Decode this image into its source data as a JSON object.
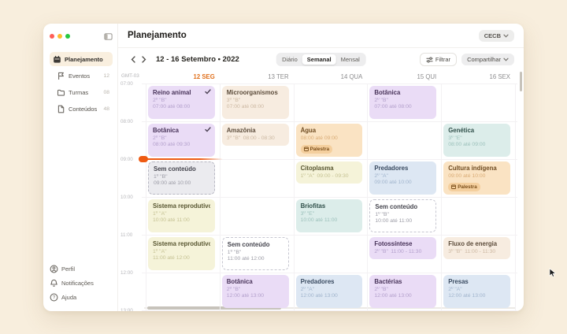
{
  "window": {
    "traffic_lights": [
      "#ff5f57",
      "#febc2e",
      "#28c840"
    ]
  },
  "sidebar": {
    "items": [
      {
        "label": "Planejamento",
        "icon": "calendar-icon",
        "count": "",
        "active": true
      },
      {
        "label": "Eventos",
        "icon": "flag-icon",
        "count": "12",
        "active": false
      },
      {
        "label": "Turmas",
        "icon": "folder-icon",
        "count": "08",
        "active": false
      },
      {
        "label": "Conteúdos",
        "icon": "file-icon",
        "count": "48",
        "active": false
      }
    ],
    "footer_items": [
      {
        "label": "Perfil",
        "icon": "user-icon"
      },
      {
        "label": "Notificações",
        "icon": "bell-icon"
      },
      {
        "label": "Ajuda",
        "icon": "help-icon"
      }
    ]
  },
  "header": {
    "title": "Planejamento",
    "org_selector": "CECB"
  },
  "toolbar": {
    "date_range": "12 - 16 Setembro • 2022",
    "view_options": [
      "Diário",
      "Semanal",
      "Mensal"
    ],
    "selected_view": "Semanal",
    "filter_label": "Filtrar",
    "share_label": "Compartilhar"
  },
  "calendar": {
    "timezone": "GMT-03",
    "accent": "#e8701c",
    "days": [
      {
        "label": "12 SEG",
        "active": true
      },
      {
        "label": "13 TER",
        "active": false
      },
      {
        "label": "14 QUA",
        "active": false
      },
      {
        "label": "15 QUI",
        "active": false
      },
      {
        "label": "16 SEX",
        "active": false
      }
    ],
    "hours": [
      "07:00",
      "08:00",
      "09:00",
      "10:00",
      "11:00",
      "12:00",
      "13:00"
    ],
    "now_indicator": {
      "day": 0,
      "time": "09:00",
      "color": "#ee5a12"
    },
    "palette": {
      "purple": {
        "bg": "#eadcf6",
        "title": "#473258",
        "sub": "#b29fcb"
      },
      "beige": {
        "bg": "#f7ece0",
        "title": "#5c4c3b",
        "sub": "#ccb8a2"
      },
      "orange": {
        "bg": "#fae3c3",
        "title": "#6e4b21",
        "sub": "#d9ac77",
        "badge_bg": "#f4cf9e",
        "badge_text": "#7c501c"
      },
      "teal": {
        "bg": "#dcedea",
        "title": "#2f4f49",
        "sub": "#9cc1bb"
      },
      "yellow": {
        "bg": "#f5f3d9",
        "title": "#585631",
        "sub": "#c5c293"
      },
      "blue": {
        "bg": "#dde7f3",
        "title": "#394a60",
        "sub": "#a0b4cc"
      },
      "gray": {
        "bg": "#ebebef",
        "title": "#45454e",
        "sub": "#9b9ba5",
        "border": "#b7b7c2",
        "dashed": true
      },
      "white": {
        "bg": "#ffffff",
        "title": "#45454e",
        "sub": "#9b9ba5",
        "border": "#c7c7d1",
        "dashed": true
      }
    },
    "events": [
      {
        "day": 0,
        "title": "Reino animal",
        "klass": "2º \"B\"",
        "time": "07:00 até 08:00",
        "start": "07:00",
        "end": "08:00",
        "color": "purple",
        "checked": true
      },
      {
        "day": 0,
        "title": "Botânica",
        "klass": "2º \"B\"",
        "time": "08:00 até 09:30",
        "start": "08:00",
        "end": "09:30",
        "color": "purple",
        "checked": true
      },
      {
        "day": 0,
        "title": "Sem conteúdo",
        "klass": "1º \"B\"",
        "time": "09:00 até 10:00",
        "start": "09:00",
        "end": "10:00",
        "color": "gray"
      },
      {
        "day": 0,
        "title": "Sistema reprodutivo",
        "klass": "1º \"A\"",
        "time": "10:00 até 11:00",
        "start": "10:00",
        "end": "11:00",
        "color": "yellow"
      },
      {
        "day": 0,
        "title": "Sistema reprodutivo",
        "klass": "1º \"A\"",
        "time": "11:00 até 12:00",
        "start": "11:00",
        "end": "12:00",
        "color": "yellow"
      },
      {
        "day": 1,
        "title": "Microorganismos",
        "klass": "3º \"B\"",
        "time": "07:00 até 08:00",
        "start": "07:00",
        "end": "08:00",
        "color": "beige"
      },
      {
        "day": 1,
        "title": "Amazônia",
        "klass": "3º \"B\"",
        "time": "08:00 - 08:30",
        "start": "08:00",
        "end": "08:30",
        "color": "beige",
        "inline": true
      },
      {
        "day": 1,
        "title": "Sem conteúdo",
        "klass": "1º \"B\"",
        "time": "11:00 até 12:00",
        "start": "11:00",
        "end": "12:00",
        "color": "white"
      },
      {
        "day": 1,
        "title": "Botânica",
        "klass": "2º \"B\"",
        "time": "12:00 até 13:00",
        "start": "12:00",
        "end": "13:00",
        "color": "purple"
      },
      {
        "day": 2,
        "title": "Água",
        "klass": "",
        "time": "08:00 até 09:00",
        "start": "08:00",
        "end": "09:00",
        "color": "orange",
        "badge": "Palestra"
      },
      {
        "day": 2,
        "title": "Citoplasma",
        "klass": "1º \"A\"",
        "time": "09:00 - 09:30",
        "start": "09:00",
        "end": "09:30",
        "color": "yellow",
        "inline": true
      },
      {
        "day": 2,
        "title": "Briofitas",
        "klass": "3º \"E\"",
        "time": "10:00 até 11:00",
        "start": "10:00",
        "end": "11:00",
        "color": "teal"
      },
      {
        "day": 2,
        "title": "Predadores",
        "klass": "2º \"A\"",
        "time": "12:00 até 13:00",
        "start": "12:00",
        "end": "13:00",
        "color": "blue"
      },
      {
        "day": 3,
        "title": "Botânica",
        "klass": "2º \"B\"",
        "time": "07:00 até 08:00",
        "start": "07:00",
        "end": "08:00",
        "color": "purple"
      },
      {
        "day": 3,
        "title": "Predadores",
        "klass": "2º \"A\"",
        "time": "09:00 até 10:00",
        "start": "09:00",
        "end": "10:00",
        "color": "blue"
      },
      {
        "day": 3,
        "title": "Sem conteúdo",
        "klass": "1º \"B\"",
        "time": "10:00 até 11:00",
        "start": "10:00",
        "end": "11:00",
        "color": "white"
      },
      {
        "day": 3,
        "title": "Fotossíntese",
        "klass": "2º \"B\"",
        "time": "11:00 - 11:30",
        "start": "11:00",
        "end": "11:30",
        "color": "purple",
        "inline": true
      },
      {
        "day": 3,
        "title": "Bactérias",
        "klass": "2º \"B\"",
        "time": "12:00 até 13:00",
        "start": "12:00",
        "end": "13:00",
        "color": "purple"
      },
      {
        "day": 4,
        "title": "Genética",
        "klass": "3º \"E\"",
        "time": "08:00 até 09:00",
        "start": "08:00",
        "end": "09:00",
        "color": "teal"
      },
      {
        "day": 4,
        "title": "Cultura indígena",
        "klass": "",
        "time": "09:00 até 10:00",
        "start": "09:00",
        "end": "10:00",
        "color": "orange",
        "badge": "Palestra"
      },
      {
        "day": 4,
        "title": "Fluxo de energia",
        "klass": "3º \"B\"",
        "time": "11:00 - 11:30",
        "start": "11:00",
        "end": "11:30",
        "color": "beige",
        "inline": true
      },
      {
        "day": 4,
        "title": "Presas",
        "klass": "2º \"A\"",
        "time": "12:00 até 13:00",
        "start": "12:00",
        "end": "13:00",
        "color": "blue"
      }
    ]
  }
}
